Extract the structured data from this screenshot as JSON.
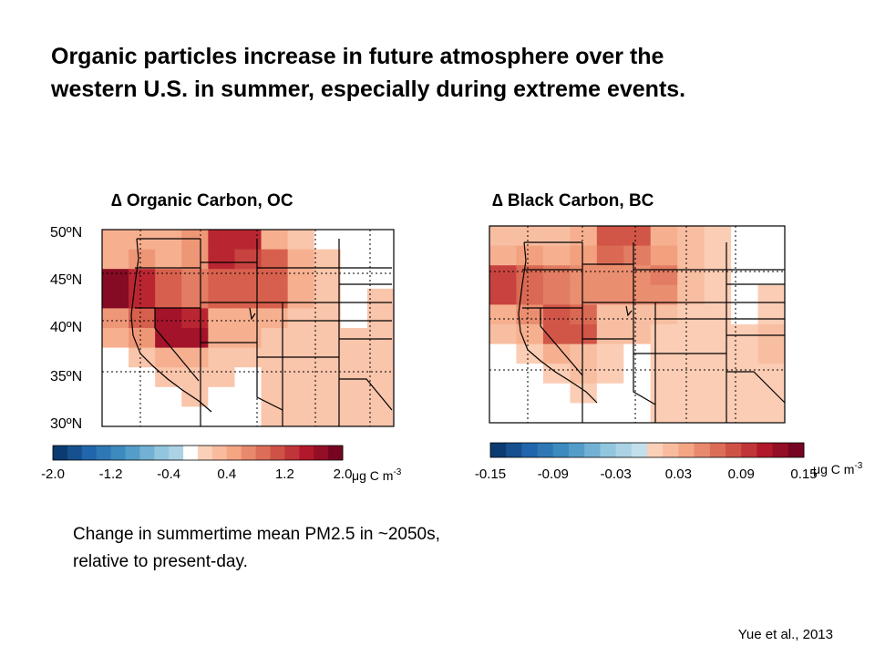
{
  "header": {
    "title_line1": "Organic particles increase in future atmosphere over the",
    "title_line2": "western U.S. in summer, especially during extreme events."
  },
  "caption": {
    "line1": "Change in summertime mean PM2.5 in ~2050s,",
    "line2": "relative to present-day."
  },
  "citation": "Yue et al., 2013",
  "colors": {
    "negative_ramp": [
      "#053061",
      "#2166ac",
      "#4393c3",
      "#92c5de",
      "#d1e5f0"
    ],
    "positive_ramp": [
      "#fddbc7",
      "#f4a582",
      "#d6604d",
      "#b2182b",
      "#67001f"
    ],
    "neutral": "#ffffff",
    "map_lines": "#000000"
  },
  "chart_data": [
    {
      "type": "heatmap",
      "title": "∆ Organic Carbon, OC",
      "y_ticks": [
        "50ºN",
        "45ºN",
        "40ºN",
        "35ºN",
        "30ºN"
      ],
      "grid": {
        "rows": 10,
        "cols": 11,
        "values": [
          [
            0.4,
            0.4,
            0.4,
            0.6,
            1.4,
            1.4,
            0.4,
            0.2,
            0.0,
            0.0,
            0.0
          ],
          [
            0.4,
            0.6,
            0.4,
            0.6,
            1.4,
            1.2,
            1.0,
            0.4,
            0.2,
            0.0,
            0.0
          ],
          [
            1.8,
            1.4,
            1.0,
            0.8,
            1.0,
            1.0,
            1.0,
            0.4,
            0.2,
            0.0,
            0.0
          ],
          [
            1.8,
            1.4,
            1.0,
            0.8,
            1.0,
            1.0,
            1.0,
            0.4,
            0.2,
            0.0,
            0.2
          ],
          [
            0.6,
            1.0,
            1.6,
            1.4,
            0.4,
            0.4,
            0.4,
            0.2,
            0.2,
            0.0,
            0.2
          ],
          [
            0.4,
            0.6,
            1.6,
            1.6,
            0.4,
            0.4,
            0.2,
            0.2,
            0.2,
            0.2,
            0.2
          ],
          [
            0.0,
            0.2,
            0.4,
            0.4,
            0.2,
            0.2,
            0.2,
            0.2,
            0.2,
            0.2,
            0.2
          ],
          [
            0.0,
            0.0,
            0.2,
            0.2,
            0.2,
            0.0,
            0.2,
            0.2,
            0.2,
            0.2,
            0.2
          ],
          [
            0.0,
            0.0,
            0.0,
            0.2,
            0.0,
            0.0,
            0.2,
            0.2,
            0.2,
            0.2,
            0.2
          ],
          [
            0.0,
            0.0,
            0.0,
            0.0,
            0.0,
            0.0,
            0.2,
            0.2,
            0.2,
            0.2,
            0.2
          ]
        ]
      },
      "colorbar": {
        "range": [
          -2.0,
          2.0
        ],
        "ticks": [
          "-2.0",
          "-1.2",
          "-0.4",
          "0.4",
          "1.2",
          "2.0"
        ],
        "unit": "μg C m",
        "unit_exp": "-3",
        "bins": 20
      }
    },
    {
      "type": "heatmap",
      "title": "∆ Black Carbon, BC",
      "y_ticks": [],
      "grid": {
        "rows": 10,
        "cols": 11,
        "values": [
          [
            0.02,
            0.02,
            0.02,
            0.03,
            0.08,
            0.08,
            0.03,
            0.02,
            0.01,
            0.0,
            0.0
          ],
          [
            0.03,
            0.04,
            0.03,
            0.04,
            0.07,
            0.06,
            0.04,
            0.02,
            0.01,
            0.0,
            0.0
          ],
          [
            0.09,
            0.07,
            0.06,
            0.05,
            0.05,
            0.05,
            0.06,
            0.02,
            0.01,
            0.0,
            0.0
          ],
          [
            0.09,
            0.07,
            0.06,
            0.05,
            0.05,
            0.05,
            0.05,
            0.02,
            0.01,
            0.0,
            0.01
          ],
          [
            0.03,
            0.05,
            0.08,
            0.07,
            0.02,
            0.02,
            0.02,
            0.01,
            0.01,
            0.0,
            0.01
          ],
          [
            0.02,
            0.03,
            0.08,
            0.08,
            0.02,
            0.02,
            0.01,
            0.01,
            0.01,
            0.01,
            0.02
          ],
          [
            0.0,
            0.01,
            0.03,
            0.02,
            0.01,
            0.0,
            0.01,
            0.01,
            0.01,
            0.01,
            0.02
          ],
          [
            0.0,
            0.0,
            0.01,
            0.02,
            0.01,
            0.0,
            0.01,
            0.01,
            0.01,
            0.01,
            0.01
          ],
          [
            0.0,
            0.0,
            0.0,
            0.01,
            0.0,
            0.0,
            0.01,
            0.01,
            0.01,
            0.01,
            0.01
          ],
          [
            0.0,
            0.0,
            0.0,
            0.0,
            0.0,
            0.0,
            0.01,
            0.01,
            0.01,
            0.01,
            0.01
          ]
        ]
      },
      "colorbar": {
        "range": [
          -0.15,
          0.15
        ],
        "ticks": [
          "-0.15",
          "-0.09",
          "-0.03",
          "0.03",
          "0.09",
          "0.15"
        ],
        "unit": "μg C m",
        "unit_exp": "-3",
        "bins": 20
      }
    }
  ]
}
